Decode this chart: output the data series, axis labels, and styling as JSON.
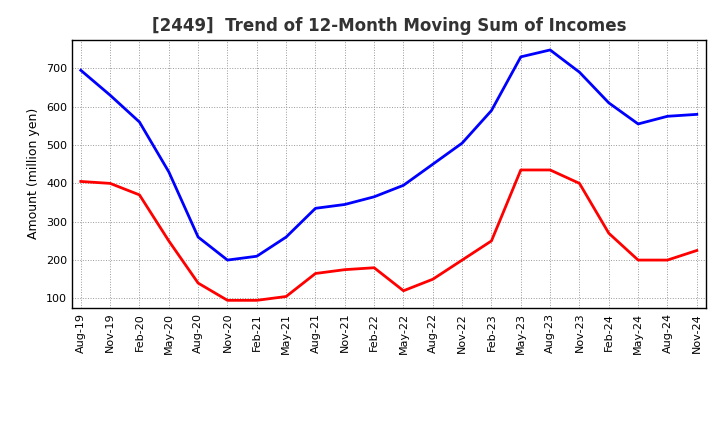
{
  "title": "[2449]  Trend of 12-Month Moving Sum of Incomes",
  "ylabel": "Amount (million yen)",
  "x_labels": [
    "Aug-19",
    "Nov-19",
    "Feb-20",
    "May-20",
    "Aug-20",
    "Nov-20",
    "Feb-21",
    "May-21",
    "Aug-21",
    "Nov-21",
    "Feb-22",
    "May-22",
    "Aug-22",
    "Nov-22",
    "Feb-23",
    "May-23",
    "Aug-23",
    "Nov-23",
    "Feb-24",
    "May-24",
    "Aug-24",
    "Nov-24"
  ],
  "ordinary_income": [
    695,
    630,
    560,
    430,
    260,
    200,
    210,
    260,
    335,
    345,
    365,
    395,
    450,
    505,
    590,
    730,
    748,
    690,
    610,
    555,
    575,
    580
  ],
  "net_income": [
    405,
    400,
    370,
    250,
    140,
    95,
    95,
    105,
    165,
    175,
    180,
    120,
    150,
    200,
    250,
    435,
    435,
    400,
    270,
    200,
    200,
    225
  ],
  "ordinary_color": "#0000ff",
  "net_color": "#ff0000",
  "bg_color": "#ffffff",
  "grid_color": "#999999",
  "ylim": [
    75,
    775
  ],
  "yticks": [
    100,
    200,
    300,
    400,
    500,
    600,
    700
  ],
  "title_fontsize": 12,
  "axis_fontsize": 9,
  "tick_fontsize": 8,
  "legend_fontsize": 10,
  "line_width": 2.0
}
